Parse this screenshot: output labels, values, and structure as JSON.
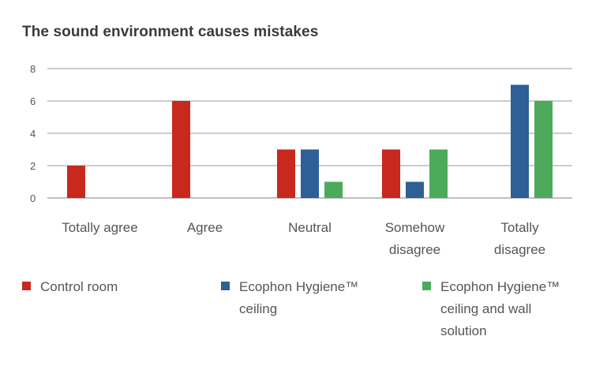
{
  "chart_data": {
    "type": "bar",
    "title": "The sound environment causes mistakes",
    "categories": [
      "Totally agree",
      "Agree",
      "Neutral",
      "Somehow\ndisagree",
      "Totally\ndisagree"
    ],
    "series": [
      {
        "name": "Control room",
        "color": "#c8281e",
        "values": [
          2,
          6,
          3,
          3,
          0
        ]
      },
      {
        "name": "Ecophon Hygiene™\nceiling",
        "color": "#2e5f96",
        "values": [
          0,
          0,
          3,
          1,
          7
        ]
      },
      {
        "name": "Ecophon Hygiene™\nceiling and wall\nsolution",
        "color": "#4caa5a",
        "values": [
          0,
          0,
          1,
          3,
          6
        ]
      }
    ],
    "yticks": [
      0,
      2,
      4,
      6,
      8
    ],
    "ylim": [
      0,
      8
    ],
    "grid": true,
    "legend": "bottom"
  }
}
